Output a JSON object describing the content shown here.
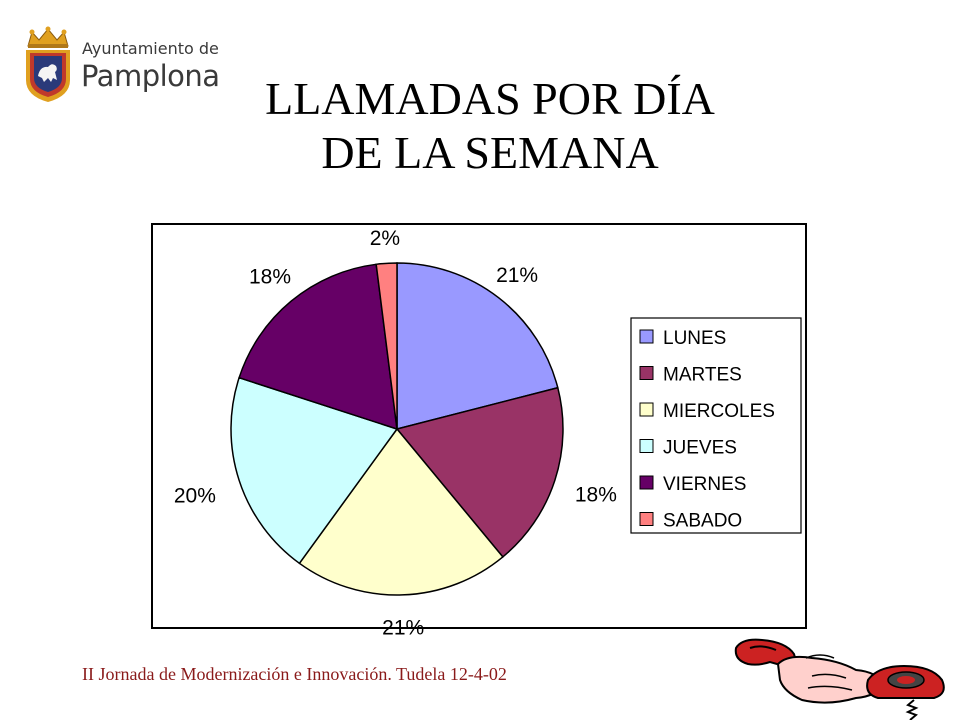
{
  "logo": {
    "line1": "Ayuntamiento de",
    "line2": "Pamplona"
  },
  "title": {
    "line1": "LLAMADAS POR DÍA",
    "line2": "DE LA SEMANA"
  },
  "chart_data": {
    "type": "pie",
    "title": "",
    "categories": [
      "LUNES",
      "MARTES",
      "MIERCOLES",
      "JUEVES",
      "VIERNES",
      "SABADO"
    ],
    "values": [
      21,
      18,
      21,
      20,
      18,
      2
    ],
    "labels": [
      "21%",
      "18%",
      "21%",
      "20%",
      "18%",
      "2%"
    ],
    "colors": [
      "#9999ff",
      "#993366",
      "#ffffcc",
      "#ccffff",
      "#660066",
      "#ff8080"
    ],
    "legend": "right",
    "start_angle": "12 o'clock",
    "direction": "clockwise"
  },
  "footer": {
    "text": "II Jornada de Modernización e Innovación.  Tudela 12-4-02"
  },
  "colors": {
    "title": "#000000",
    "footer": "#8a1a1a",
    "logo_shield": "#c0392b",
    "logo_gold": "#e0a020"
  }
}
